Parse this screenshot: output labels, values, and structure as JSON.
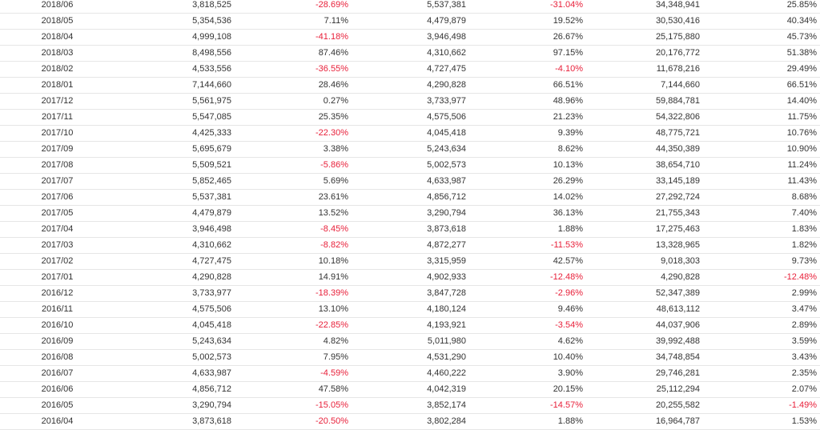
{
  "rows": [
    [
      "2018/06",
      "3,818,525",
      "-28.69%",
      "5,537,381",
      "-31.04%",
      "34,348,941",
      "25.85%"
    ],
    [
      "2018/05",
      "5,354,536",
      "7.11%",
      "4,479,879",
      "19.52%",
      "30,530,416",
      "40.34%"
    ],
    [
      "2018/04",
      "4,999,108",
      "-41.18%",
      "3,946,498",
      "26.67%",
      "25,175,880",
      "45.73%"
    ],
    [
      "2018/03",
      "8,498,556",
      "87.46%",
      "4,310,662",
      "97.15%",
      "20,176,772",
      "51.38%"
    ],
    [
      "2018/02",
      "4,533,556",
      "-36.55%",
      "4,727,475",
      "-4.10%",
      "11,678,216",
      "29.49%"
    ],
    [
      "2018/01",
      "7,144,660",
      "28.46%",
      "4,290,828",
      "66.51%",
      "7,144,660",
      "66.51%"
    ],
    [
      "2017/12",
      "5,561,975",
      "0.27%",
      "3,733,977",
      "48.96%",
      "59,884,781",
      "14.40%"
    ],
    [
      "2017/11",
      "5,547,085",
      "25.35%",
      "4,575,506",
      "21.23%",
      "54,322,806",
      "11.75%"
    ],
    [
      "2017/10",
      "4,425,333",
      "-22.30%",
      "4,045,418",
      "9.39%",
      "48,775,721",
      "10.76%"
    ],
    [
      "2017/09",
      "5,695,679",
      "3.38%",
      "5,243,634",
      "8.62%",
      "44,350,389",
      "10.90%"
    ],
    [
      "2017/08",
      "5,509,521",
      "-5.86%",
      "5,002,573",
      "10.13%",
      "38,654,710",
      "11.24%"
    ],
    [
      "2017/07",
      "5,852,465",
      "5.69%",
      "4,633,987",
      "26.29%",
      "33,145,189",
      "11.43%"
    ],
    [
      "2017/06",
      "5,537,381",
      "23.61%",
      "4,856,712",
      "14.02%",
      "27,292,724",
      "8.68%"
    ],
    [
      "2017/05",
      "4,479,879",
      "13.52%",
      "3,290,794",
      "36.13%",
      "21,755,343",
      "7.40%"
    ],
    [
      "2017/04",
      "3,946,498",
      "-8.45%",
      "3,873,618",
      "1.88%",
      "17,275,463",
      "1.83%"
    ],
    [
      "2017/03",
      "4,310,662",
      "-8.82%",
      "4,872,277",
      "-11.53%",
      "13,328,965",
      "1.82%"
    ],
    [
      "2017/02",
      "4,727,475",
      "10.18%",
      "3,315,959",
      "42.57%",
      "9,018,303",
      "9.73%"
    ],
    [
      "2017/01",
      "4,290,828",
      "14.91%",
      "4,902,933",
      "-12.48%",
      "4,290,828",
      "-12.48%"
    ],
    [
      "2016/12",
      "3,733,977",
      "-18.39%",
      "3,847,728",
      "-2.96%",
      "52,347,389",
      "2.99%"
    ],
    [
      "2016/11",
      "4,575,506",
      "13.10%",
      "4,180,124",
      "9.46%",
      "48,613,112",
      "3.47%"
    ],
    [
      "2016/10",
      "4,045,418",
      "-22.85%",
      "4,193,921",
      "-3.54%",
      "44,037,906",
      "2.89%"
    ],
    [
      "2016/09",
      "5,243,634",
      "4.82%",
      "5,011,980",
      "4.62%",
      "39,992,488",
      "3.59%"
    ],
    [
      "2016/08",
      "5,002,573",
      "7.95%",
      "4,531,290",
      "10.40%",
      "34,748,854",
      "3.43%"
    ],
    [
      "2016/07",
      "4,633,987",
      "-4.59%",
      "4,460,222",
      "3.90%",
      "29,746,281",
      "2.35%"
    ],
    [
      "2016/06",
      "4,856,712",
      "47.58%",
      "4,042,319",
      "20.15%",
      "25,112,294",
      "2.07%"
    ],
    [
      "2016/05",
      "3,290,794",
      "-15.05%",
      "3,852,174",
      "-14.57%",
      "20,255,582",
      "-1.49%"
    ],
    [
      "2016/04",
      "3,873,618",
      "-20.50%",
      "3,802,284",
      "1.88%",
      "16,964,787",
      "1.53%"
    ]
  ],
  "negative_color": "#e8203a",
  "text_color": "#333333",
  "divider_color": "#e6e6e6"
}
